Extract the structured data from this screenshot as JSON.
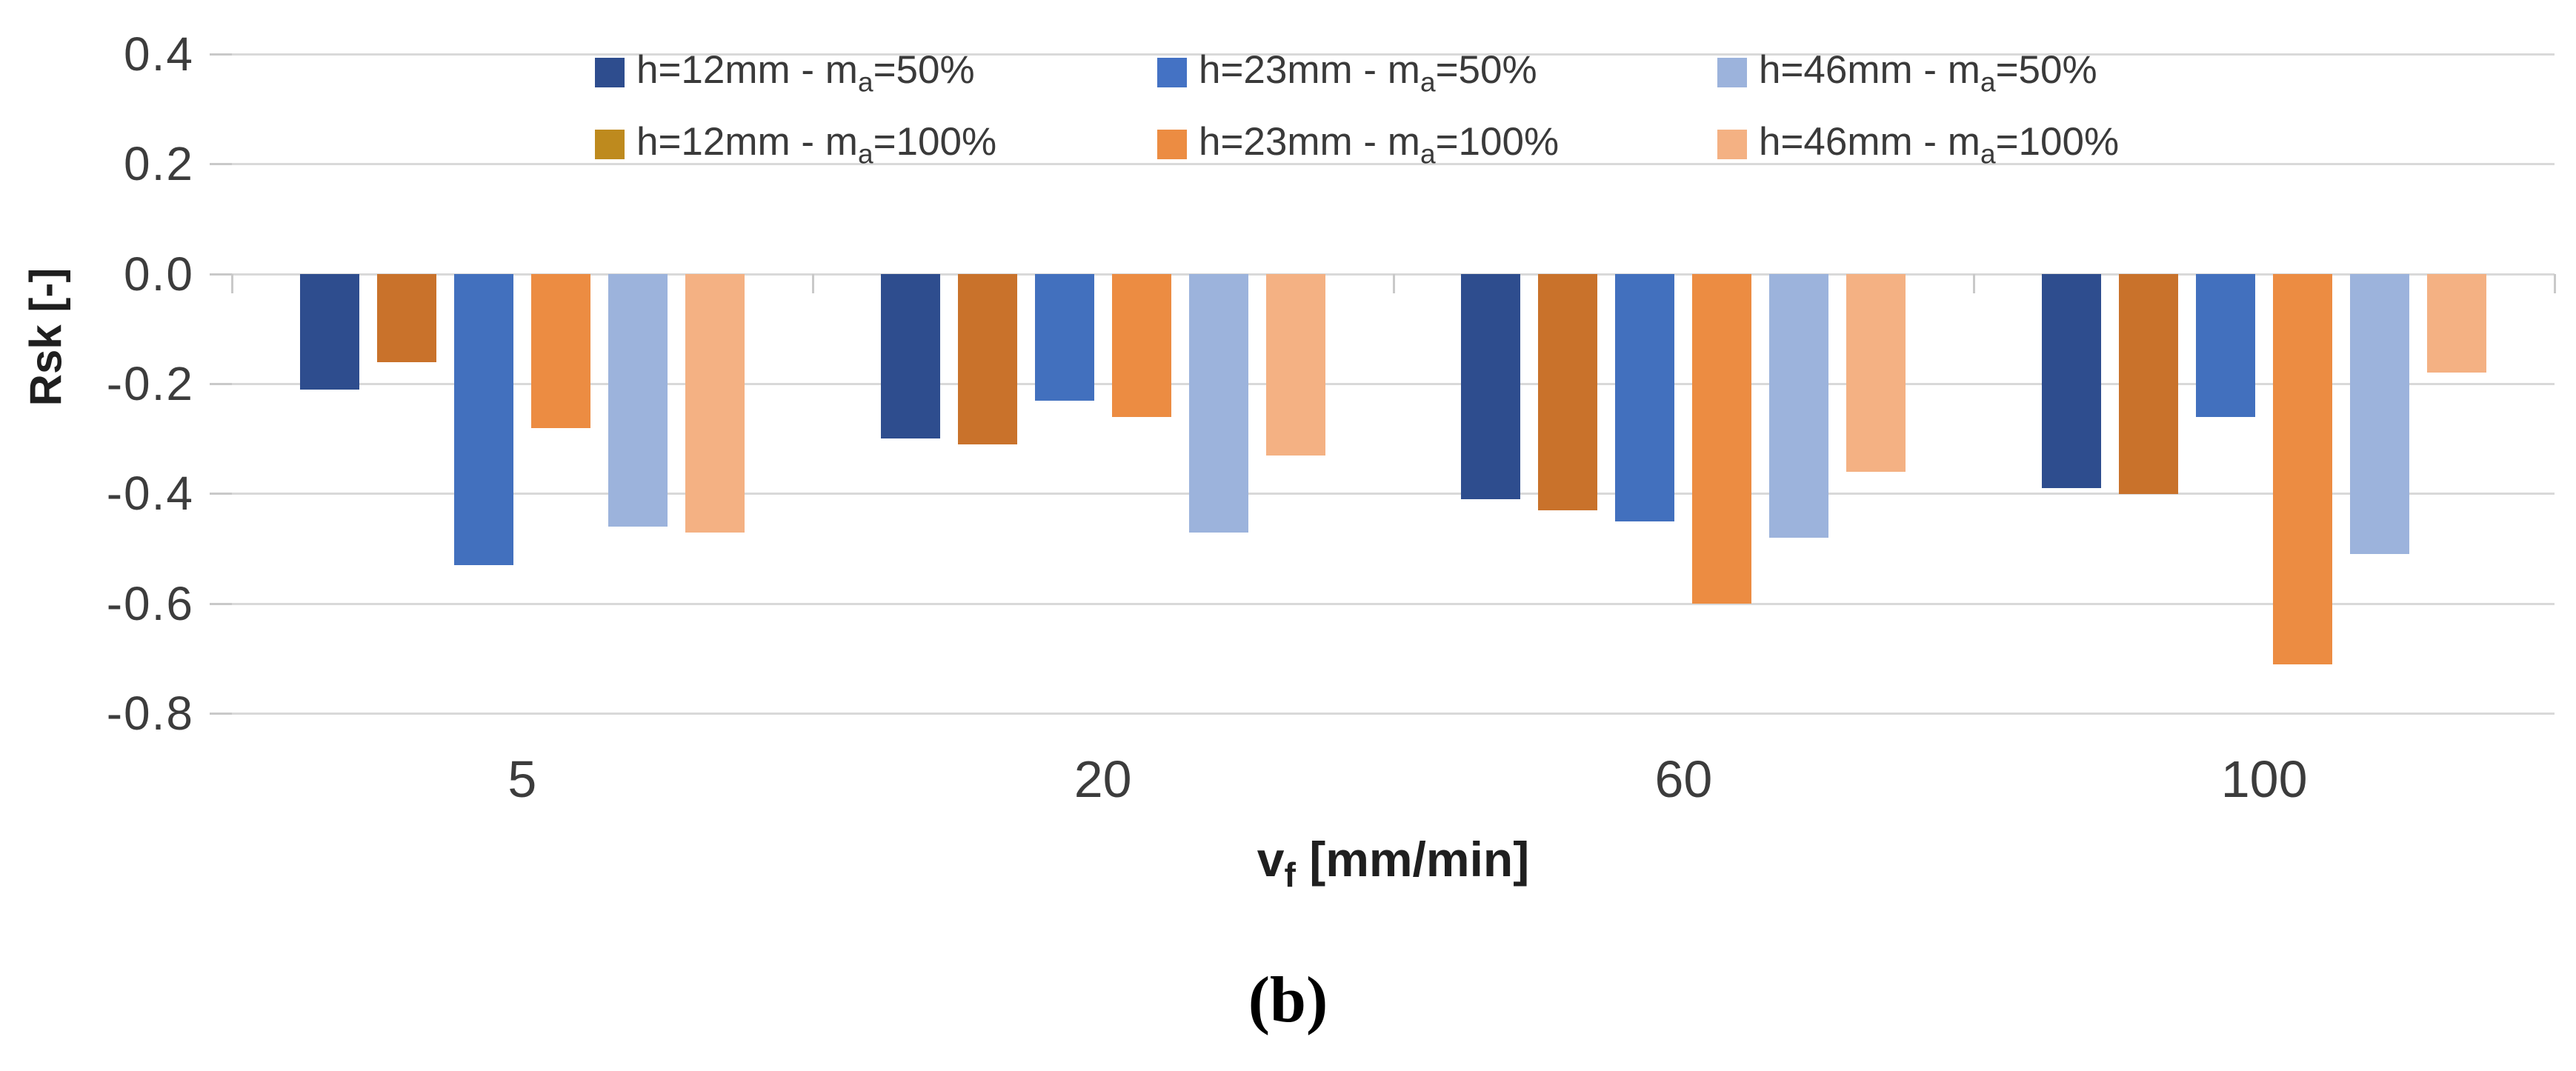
{
  "figure": {
    "caption": "(b)"
  },
  "chart_data": {
    "type": "bar",
    "title": "",
    "categories": [
      "5",
      "20",
      "60",
      "100"
    ],
    "series": [
      {
        "name": "h=12mm - ma=50%",
        "label": {
          "pre": "h=12mm - m",
          "sub": "a",
          "post": "=50%"
        },
        "color": "#2E4D8E",
        "swatch_color": "#2E4D8E",
        "values": [
          -0.21,
          -0.3,
          -0.41,
          -0.39
        ]
      },
      {
        "name": "h=23mm - ma=50%",
        "label": {
          "pre": "h=23mm - m",
          "sub": "a",
          "post": "=50%"
        },
        "color": "#4270BE",
        "swatch_color": "#4472C4",
        "values": [
          -0.53,
          -0.23,
          -0.45,
          -0.26
        ]
      },
      {
        "name": "h=46mm - ma=50%",
        "label": {
          "pre": "h=46mm - m",
          "sub": "a",
          "post": "=50%"
        },
        "color": "#9CB3DC",
        "swatch_color": "#9CB3DC",
        "values": [
          -0.46,
          -0.47,
          -0.48,
          -0.51
        ]
      },
      {
        "name": "h=12mm - ma=100%",
        "label": {
          "pre": "h=12mm - m",
          "sub": "a",
          "post": "=100%"
        },
        "color": "#C9722B",
        "swatch_color": "#BE8A1E",
        "values": [
          -0.16,
          -0.31,
          -0.43,
          -0.4
        ]
      },
      {
        "name": "h=23mm - ma=100%",
        "label": {
          "pre": "h=23mm - m",
          "sub": "a",
          "post": "=100%"
        },
        "color": "#EC8C42",
        "swatch_color": "#EC8C42",
        "values": [
          -0.28,
          -0.26,
          -0.6,
          -0.71
        ]
      },
      {
        "name": "h=46mm - ma=100%",
        "label": {
          "pre": "h=46mm - m",
          "sub": "a",
          "post": "=100%"
        },
        "color": "#F4B183",
        "swatch_color": "#F4B183",
        "values": [
          -0.47,
          -0.33,
          -0.36,
          -0.18
        ]
      }
    ],
    "plot_order": [
      0,
      3,
      1,
      4,
      2,
      5
    ],
    "legend_rows": [
      [
        0,
        1,
        2
      ],
      [
        3,
        4,
        5
      ]
    ],
    "legend_position": "top",
    "grid": true,
    "ylabel": "Rsk [-]",
    "xlabel": {
      "pre": "v",
      "sub": "f",
      "post": " [mm/min]"
    },
    "ytick_labels": [
      "0.4",
      "0.2",
      "0.0",
      "-0.2",
      "-0.4",
      "-0.6",
      "-0.8"
    ],
    "ylim": [
      -0.8,
      0.4
    ],
    "colors": {
      "gridline": "#D9D9D9",
      "tick_mark": "#C9C9C9",
      "tick_text": "#3C3C3C",
      "axis_title_text": "#1F1F1F",
      "background": "#FFFFFF"
    }
  }
}
